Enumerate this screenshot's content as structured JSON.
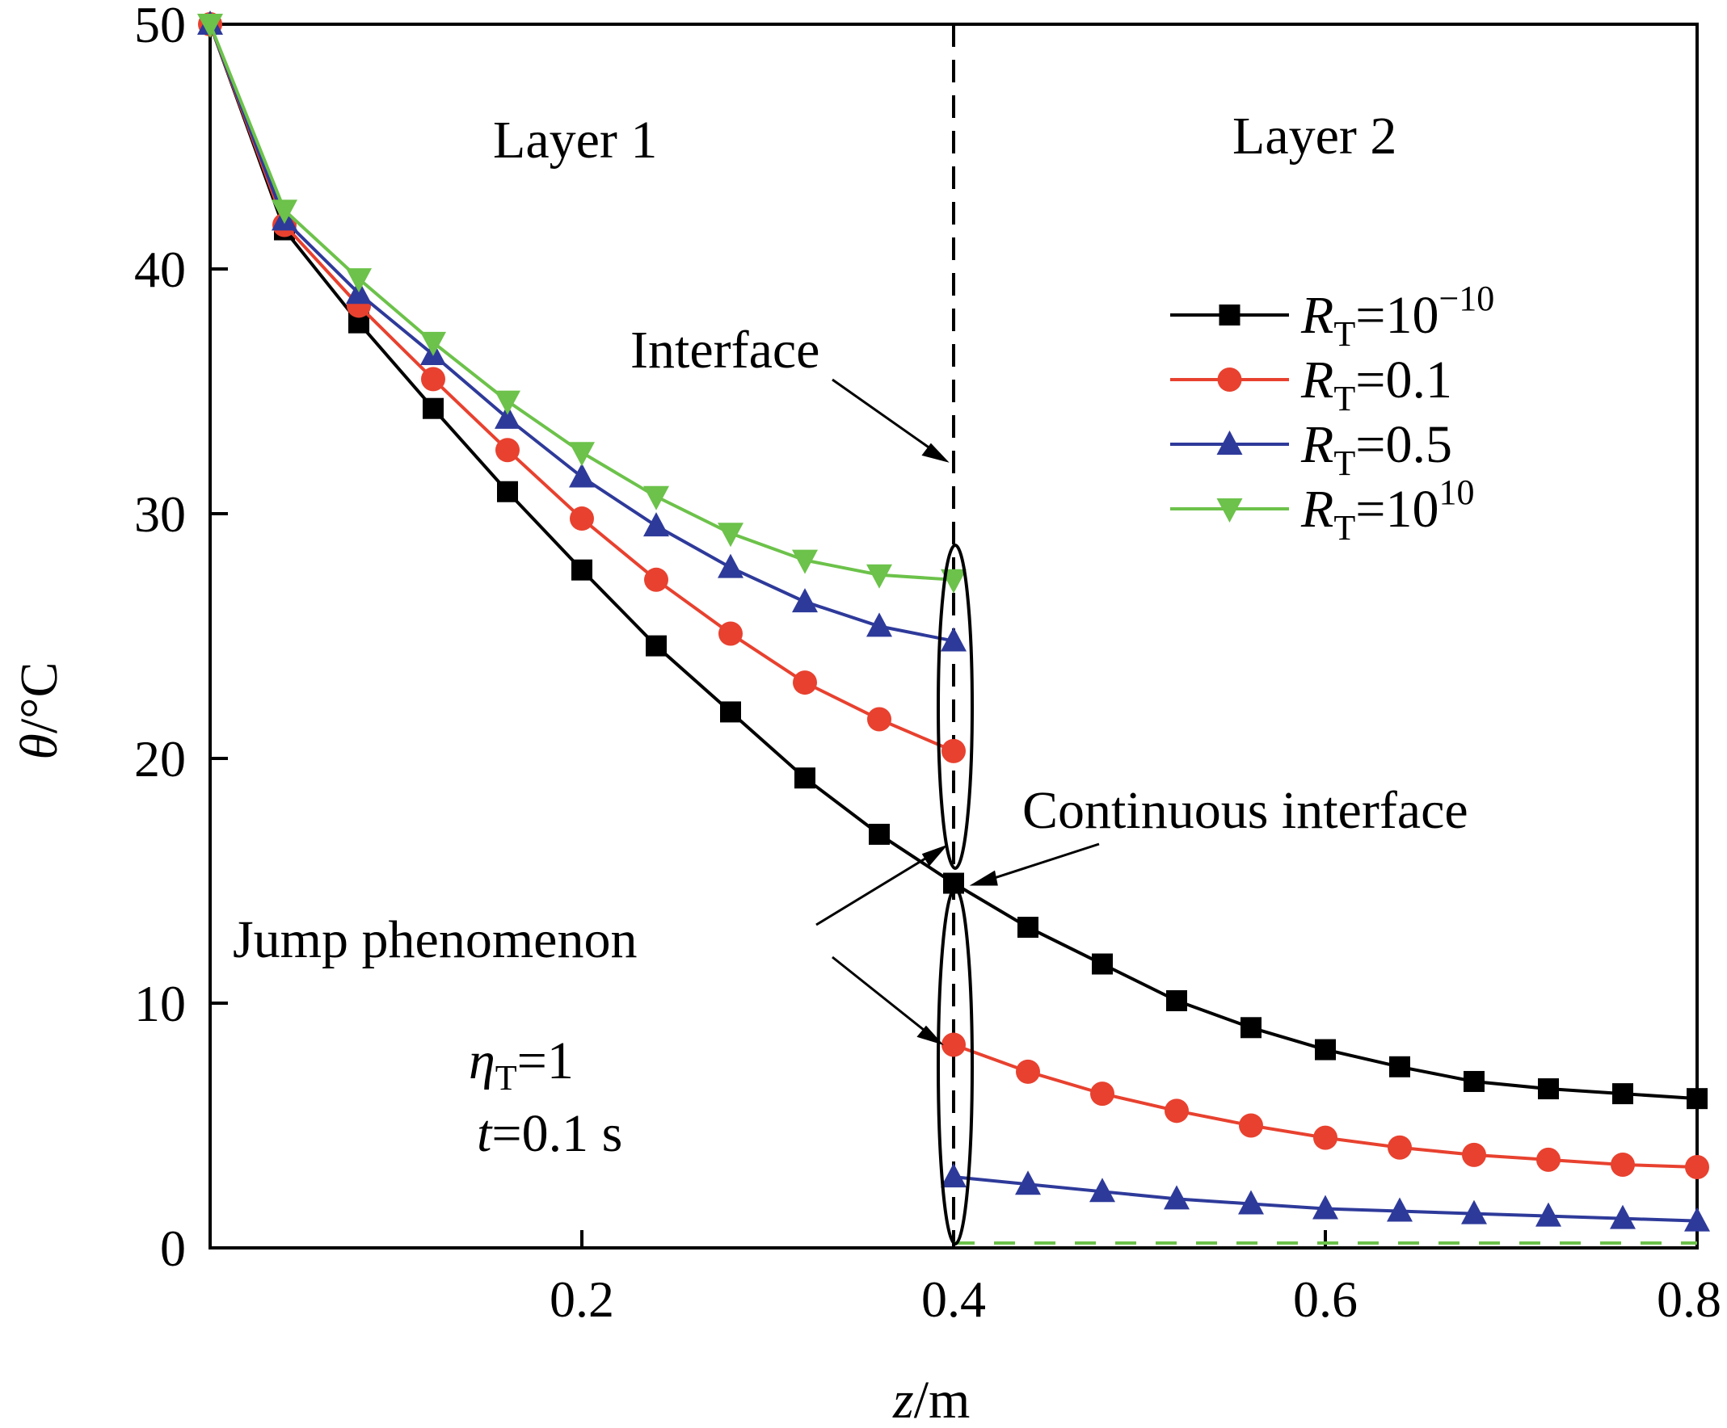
{
  "chart_data": {
    "type": "line",
    "xlabel": {
      "var": "z",
      "unit": "/m"
    },
    "ylabel": {
      "var": "θ",
      "unit": "/°C"
    },
    "xlim": [
      0,
      0.8
    ],
    "ylim": [
      0,
      50
    ],
    "xticks": [
      0.2,
      0.4,
      0.6,
      0.8
    ],
    "yticks": [
      0,
      10,
      20,
      30,
      40,
      50
    ],
    "x_tick_labels": [
      "0.2",
      "0.4",
      "0.6",
      "0.8"
    ],
    "y_tick_labels": [
      "0",
      "10",
      "20",
      "30",
      "40",
      "50"
    ],
    "interface_x": 0.4,
    "legend_position": "top-right",
    "series": [
      {
        "name": "R_T=10^-10",
        "label": {
          "var": "R",
          "sub": "T",
          "eq": "=10",
          "sup": "−10"
        },
        "color": "#000000",
        "marker": "square",
        "layer1": {
          "x": [
            0,
            0.04,
            0.08,
            0.12,
            0.16,
            0.2,
            0.24,
            0.28,
            0.32,
            0.36,
            0.4
          ],
          "y": [
            50,
            41.6,
            37.8,
            34.3,
            30.9,
            27.7,
            24.6,
            21.9,
            19.2,
            16.9,
            14.9
          ]
        },
        "layer2": {
          "x": [
            0.4,
            0.44,
            0.48,
            0.52,
            0.56,
            0.6,
            0.64,
            0.68,
            0.72,
            0.76,
            0.8
          ],
          "y": [
            14.9,
            13.1,
            11.6,
            10.1,
            9.0,
            8.1,
            7.4,
            6.8,
            6.5,
            6.3,
            6.1
          ]
        }
      },
      {
        "name": "R_T=0.1",
        "label": {
          "var": "R",
          "sub": "T",
          "eq": "=0.1",
          "sup": ""
        },
        "color": "#e8412f",
        "marker": "circle",
        "layer1": {
          "x": [
            0,
            0.04,
            0.08,
            0.12,
            0.16,
            0.2,
            0.24,
            0.28,
            0.32,
            0.36,
            0.4
          ],
          "y": [
            50,
            41.8,
            38.5,
            35.5,
            32.6,
            29.8,
            27.3,
            25.1,
            23.1,
            21.6,
            20.3
          ]
        },
        "layer2": {
          "x": [
            0.4,
            0.44,
            0.48,
            0.52,
            0.56,
            0.6,
            0.64,
            0.68,
            0.72,
            0.76,
            0.8
          ],
          "y": [
            8.3,
            7.2,
            6.3,
            5.6,
            5.0,
            4.5,
            4.1,
            3.8,
            3.6,
            3.4,
            3.3
          ]
        }
      },
      {
        "name": "R_T=0.5",
        "label": {
          "var": "R",
          "sub": "T",
          "eq": "=0.5",
          "sup": ""
        },
        "color": "#2e3a9a",
        "marker": "triangle-up",
        "layer1": {
          "x": [
            0,
            0.04,
            0.08,
            0.12,
            0.16,
            0.2,
            0.24,
            0.28,
            0.32,
            0.36,
            0.4
          ],
          "y": [
            50,
            42.0,
            39.0,
            36.5,
            33.9,
            31.5,
            29.5,
            27.8,
            26.4,
            25.4,
            24.8
          ]
        },
        "layer2": {
          "x": [
            0.4,
            0.44,
            0.48,
            0.52,
            0.56,
            0.6,
            0.64,
            0.68,
            0.72,
            0.76,
            0.8
          ],
          "y": [
            2.9,
            2.6,
            2.3,
            2.0,
            1.8,
            1.6,
            1.5,
            1.4,
            1.3,
            1.2,
            1.1
          ]
        }
      },
      {
        "name": "R_T=10^10",
        "label": {
          "var": "R",
          "sub": "T",
          "eq": "=10",
          "sup": "10"
        },
        "color": "#6cc24a",
        "marker": "triangle-down",
        "layer1": {
          "x": [
            0,
            0.04,
            0.08,
            0.12,
            0.16,
            0.2,
            0.24,
            0.28,
            0.32,
            0.36,
            0.4
          ],
          "y": [
            50,
            42.4,
            39.6,
            37.0,
            34.6,
            32.5,
            30.7,
            29.2,
            28.1,
            27.5,
            27.3
          ]
        },
        "layer2": {
          "x": [
            0.4,
            0.44,
            0.48,
            0.52,
            0.56,
            0.6,
            0.64,
            0.68,
            0.72,
            0.76,
            0.8
          ],
          "y": [
            0.2,
            0.2,
            0.2,
            0.2,
            0.2,
            0.2,
            0.2,
            0.2,
            0.2,
            0.2,
            0.2
          ]
        }
      }
    ]
  },
  "annotations": {
    "layer1": "Layer 1",
    "layer2": "Layer 2",
    "interface": "Interface",
    "continuous": "Continuous interface",
    "jump": "Jump phenomenon",
    "eta": {
      "var": "η",
      "sub": "T",
      "rest": "=1"
    },
    "time": {
      "var": "t",
      "rest": "=0.1 s"
    }
  }
}
